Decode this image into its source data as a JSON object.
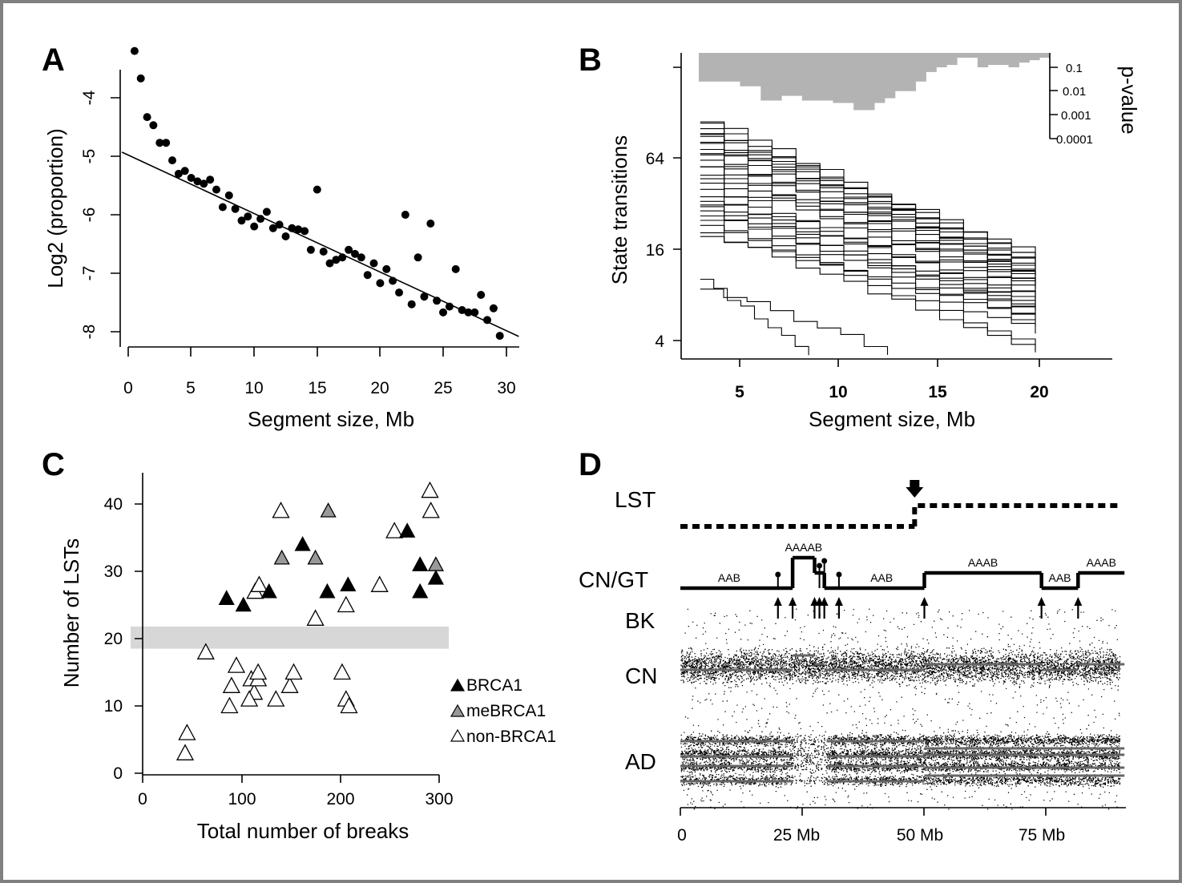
{
  "colors": {
    "frame": "#808080",
    "band": "#d7d7d7",
    "pvalue_fill": "#b3b3b3",
    "me_fill": "#999999",
    "series_grey": "#666666"
  },
  "panels": {
    "a": "A",
    "b": "B",
    "c": "C",
    "d": "D"
  },
  "chart_data": [
    {
      "panel": "A",
      "type": "scatter",
      "xlabel": "Segment size, Mb",
      "ylabel": "Log2 (proportion)",
      "xlim": [
        -0.5,
        31
      ],
      "ylim": [
        -8.25,
        -3.3
      ],
      "x_ticks": [
        "0",
        "5",
        "10",
        "15",
        "20",
        "25",
        "30"
      ],
      "y_ticks": [
        "-4",
        "-5",
        "-6",
        "-7",
        "-8"
      ],
      "trend_line": {
        "x": [
          -0.5,
          31
        ],
        "y": [
          -4.93,
          -8.08
        ]
      },
      "points": [
        [
          0.5,
          -3.2
        ],
        [
          1.0,
          -3.67
        ],
        [
          1.5,
          -4.33
        ],
        [
          2.0,
          -4.47
        ],
        [
          2.5,
          -4.77
        ],
        [
          3.0,
          -4.77
        ],
        [
          3.5,
          -5.07
        ],
        [
          4.0,
          -5.3
        ],
        [
          4.5,
          -5.25
        ],
        [
          5.0,
          -5.37
        ],
        [
          5.5,
          -5.43
        ],
        [
          6.0,
          -5.47
        ],
        [
          6.5,
          -5.4
        ],
        [
          7.0,
          -5.57
        ],
        [
          7.5,
          -5.87
        ],
        [
          8.0,
          -5.67
        ],
        [
          8.5,
          -5.9
        ],
        [
          9.0,
          -6.1
        ],
        [
          9.5,
          -6.03
        ],
        [
          10.0,
          -6.2
        ],
        [
          10.5,
          -6.07
        ],
        [
          11.0,
          -5.95
        ],
        [
          11.5,
          -6.23
        ],
        [
          12.0,
          -6.17
        ],
        [
          12.5,
          -6.37
        ],
        [
          13.0,
          -6.23
        ],
        [
          13.5,
          -6.25
        ],
        [
          14.0,
          -6.28
        ],
        [
          14.5,
          -6.6
        ],
        [
          15.0,
          -5.57
        ],
        [
          15.5,
          -6.63
        ],
        [
          16.0,
          -6.83
        ],
        [
          16.5,
          -6.77
        ],
        [
          17.0,
          -6.73
        ],
        [
          17.5,
          -6.6
        ],
        [
          18.0,
          -6.67
        ],
        [
          18.5,
          -6.73
        ],
        [
          19.0,
          -7.03
        ],
        [
          19.5,
          -6.83
        ],
        [
          20.0,
          -7.17
        ],
        [
          20.5,
          -6.93
        ],
        [
          21.0,
          -7.13
        ],
        [
          21.5,
          -7.33
        ],
        [
          22.0,
          -6.0
        ],
        [
          22.5,
          -7.53
        ],
        [
          23.0,
          -6.73
        ],
        [
          23.5,
          -7.4
        ],
        [
          24.0,
          -6.15
        ],
        [
          24.5,
          -7.47
        ],
        [
          25.0,
          -7.67
        ],
        [
          25.5,
          -7.57
        ],
        [
          26.0,
          -6.93
        ],
        [
          26.5,
          -7.63
        ],
        [
          27.0,
          -7.67
        ],
        [
          27.5,
          -7.67
        ],
        [
          28.0,
          -7.37
        ],
        [
          28.5,
          -7.8
        ],
        [
          29.0,
          -7.6
        ],
        [
          29.5,
          -8.07
        ]
      ]
    },
    {
      "panel": "B",
      "type": "line",
      "xlabel": "Segment size, Mb",
      "ylabel": "State transitions",
      "y_right_label": "p-value",
      "xlim": [
        2,
        23.5
      ],
      "y_scale": "log2",
      "ylim": [
        3.2,
        200
      ],
      "x_ticks": [
        "5",
        "10",
        "15",
        "20"
      ],
      "y_ticks": [
        "4",
        "16",
        "64"
      ],
      "p_ticks": [
        "0.1",
        "0.01",
        "0.001",
        "0.0001"
      ],
      "pvalue_log10_bars": [
        -1.6,
        -1.6,
        -1.6,
        -1.6,
        -1.8,
        -1.8,
        -2.4,
        -2.4,
        -2.2,
        -2.2,
        -2.4,
        -2.4,
        -2.4,
        -2.5,
        -2.5,
        -2.8,
        -2.8,
        -2.5,
        -2.3,
        -2.0,
        -2.0,
        -1.6,
        -1.2,
        -1.0,
        -0.9,
        -0.6,
        -0.6,
        -1.0,
        -0.9,
        -0.9,
        -1.0,
        -0.8,
        -0.7,
        -0.6
      ],
      "note": "about 30 per-sample descending step curves of state transitions between 3 and 20 Mb",
      "series": [
        {
          "start": 113,
          "end": 13
        },
        {
          "start": 106,
          "end": 11
        },
        {
          "start": 100,
          "end": 12
        },
        {
          "start": 95,
          "end": 10
        },
        {
          "start": 90,
          "end": 14
        },
        {
          "start": 86,
          "end": 9.5
        },
        {
          "start": 82,
          "end": 11
        },
        {
          "start": 78,
          "end": 13
        },
        {
          "start": 74,
          "end": 10
        },
        {
          "start": 70,
          "end": 8.5
        },
        {
          "start": 66,
          "end": 9
        },
        {
          "start": 62,
          "end": 12
        },
        {
          "start": 58,
          "end": 7.5
        },
        {
          "start": 54,
          "end": 10.5
        },
        {
          "start": 50,
          "end": 8
        },
        {
          "start": 46,
          "end": 9
        },
        {
          "start": 42,
          "end": 6.5
        },
        {
          "start": 39,
          "end": 7
        },
        {
          "start": 36,
          "end": 6
        },
        {
          "start": 34,
          "end": 7.5
        },
        {
          "start": 32,
          "end": 5.5
        },
        {
          "start": 30,
          "end": 6.5
        },
        {
          "start": 28,
          "end": 5
        },
        {
          "start": 27,
          "end": 6
        },
        {
          "start": 25,
          "end": 3.5
        },
        {
          "start": 23,
          "end": 4.5
        },
        {
          "start": 21,
          "end": 3.3
        },
        {
          "start": 20,
          "end": 5.5
        },
        {
          "start": 10,
          "end": 3.3
        },
        {
          "start": 9,
          "end": 3.3
        }
      ]
    },
    {
      "panel": "C",
      "type": "scatter",
      "xlabel": "Total number of breaks",
      "ylabel": "Number of LSTs",
      "xlim": [
        -10,
        310
      ],
      "ylim": [
        0,
        45
      ],
      "threshold_band": [
        18.5,
        21.8
      ],
      "x_ticks": [
        "0",
        "100",
        "200",
        "300"
      ],
      "y_ticks": [
        "0",
        "10",
        "20",
        "30",
        "40"
      ],
      "legend": [
        "BRCA1",
        "meBRCA1",
        "non-BRCA1"
      ],
      "series": [
        {
          "name": "BRCA1",
          "points": [
            [
              85,
              26
            ],
            [
              102,
              25
            ],
            [
              128,
              27
            ],
            [
              162,
              34
            ],
            [
              187,
              27
            ],
            [
              208,
              28
            ],
            [
              268,
              36
            ],
            [
              281,
              31
            ],
            [
              281,
              27
            ],
            [
              297,
              29
            ]
          ]
        },
        {
          "name": "meBRCA1",
          "points": [
            [
              141,
              32
            ],
            [
              188,
              39
            ],
            [
              175,
              32
            ],
            [
              297,
              31
            ]
          ]
        },
        {
          "name": "non-BRCA1",
          "points": [
            [
              45,
              6
            ],
            [
              43,
              3
            ],
            [
              64,
              18
            ],
            [
              95,
              16
            ],
            [
              90,
              13
            ],
            [
              88,
              10
            ],
            [
              110,
              14
            ],
            [
              113,
              12
            ],
            [
              108,
              11
            ],
            [
              117,
              14
            ],
            [
              117,
              15
            ],
            [
              135,
              11
            ],
            [
              149,
              13
            ],
            [
              153,
              15
            ],
            [
              140,
              39
            ],
            [
              114,
              27
            ],
            [
              118,
              28
            ],
            [
              175,
              23
            ],
            [
              202,
              15
            ],
            [
              206,
              11
            ],
            [
              209,
              10
            ],
            [
              206,
              25
            ],
            [
              240,
              28
            ],
            [
              255,
              36
            ],
            [
              291,
              42
            ],
            [
              292,
              39
            ]
          ]
        }
      ]
    },
    {
      "panel": "D",
      "type": "scatter",
      "xlabel": "",
      "track_labels": [
        "LST",
        "CN/GT",
        "BK",
        "CN",
        "AD"
      ],
      "x_ticks": [
        "0",
        "25 Mb",
        "50 Mb",
        "75 Mb"
      ],
      "xlim": [
        0,
        91
      ],
      "lst_change_mb": 48,
      "breakpoints_mb": [
        20,
        23,
        27.5,
        28.5,
        29.5,
        32.5,
        50,
        74,
        81.5
      ],
      "genotype_segments": [
        {
          "start": 0,
          "end": 20,
          "level": 0,
          "label": "AAB"
        },
        {
          "start": 20,
          "end": 23,
          "level": 0,
          "label": ""
        },
        {
          "start": 23,
          "end": 27.5,
          "level": 2,
          "label": "AAAAB"
        },
        {
          "start": 27.5,
          "end": 28.5,
          "level": 1,
          "label": ""
        },
        {
          "start": 28.5,
          "end": 29.5,
          "level": 1,
          "label": ""
        },
        {
          "start": 29.5,
          "end": 32.5,
          "level": 0,
          "label": ""
        },
        {
          "start": 32.5,
          "end": 50,
          "level": 0,
          "label": "AAB"
        },
        {
          "start": 50,
          "end": 74,
          "level": 1,
          "label": "AAAB"
        },
        {
          "start": 74,
          "end": 81.5,
          "level": 0,
          "label": "AAB"
        },
        {
          "start": 81.5,
          "end": 91,
          "level": 1,
          "label": "AAAB"
        }
      ]
    }
  ]
}
